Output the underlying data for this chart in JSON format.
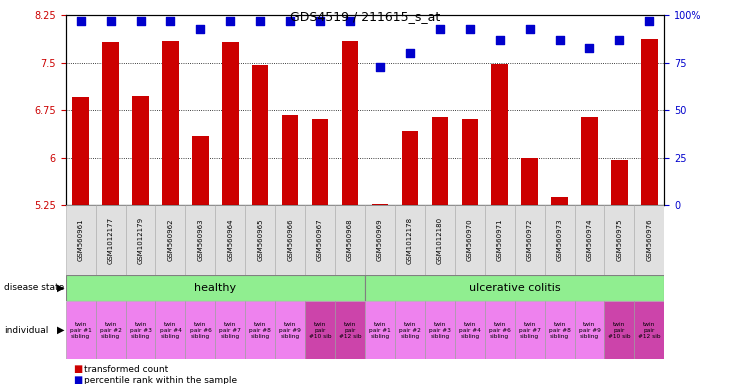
{
  "title": "GDS4519 / 211615_s_at",
  "samples": [
    "GSM560961",
    "GSM1012177",
    "GSM1012179",
    "GSM560962",
    "GSM560963",
    "GSM560964",
    "GSM560965",
    "GSM560966",
    "GSM560967",
    "GSM560968",
    "GSM560969",
    "GSM1012178",
    "GSM1012180",
    "GSM560970",
    "GSM560971",
    "GSM560972",
    "GSM560973",
    "GSM560974",
    "GSM560975",
    "GSM560976"
  ],
  "bar_values": [
    6.96,
    7.83,
    6.97,
    7.85,
    6.35,
    7.83,
    7.47,
    6.67,
    6.62,
    7.85,
    5.27,
    6.42,
    6.65,
    6.61,
    7.49,
    6.0,
    5.38,
    6.65,
    5.97,
    7.87
  ],
  "dot_values": [
    97,
    97,
    97,
    97,
    93,
    97,
    97,
    97,
    97,
    97,
    73,
    80,
    93,
    93,
    87,
    93,
    87,
    83,
    87,
    97
  ],
  "bar_color": "#cc0000",
  "dot_color": "#0000cc",
  "ymin": 5.25,
  "ymax": 8.25,
  "yticks_left": [
    5.25,
    6.0,
    6.75,
    7.5,
    8.25
  ],
  "ytick_labels_left": [
    "5.25",
    "6",
    "6.75",
    "7.5",
    "8.25"
  ],
  "yticks_right": [
    0,
    25,
    50,
    75,
    100
  ],
  "ytick_labels_right": [
    "0",
    "25",
    "50",
    "75",
    "100%"
  ],
  "grid_lines": [
    6.0,
    6.75,
    7.5
  ],
  "disease_state_divider": 10,
  "healthy_label": "healthy",
  "uc_label": "ulcerative colitis",
  "healthy_color": "#90ee90",
  "uc_color": "#90ee90",
  "individual_labels": [
    "twin\npair #1\nsibling",
    "twin\npair #2\nsibling",
    "twin\npair #3\nsibling",
    "twin\npair #4\nsibling",
    "twin\npair #6\nsibling",
    "twin\npair #7\nsibling",
    "twin\npair #8\nsibling",
    "twin\npair #9\nsibling",
    "twin\npair\n#10 sib",
    "twin\npair\n#12 sib",
    "twin\npair #1\nsibling",
    "twin\npair #2\nsibling",
    "twin\npair #3\nsibling",
    "twin\npair #4\nsibling",
    "twin\npair #6\nsibling",
    "twin\npair #7\nsibling",
    "twin\npair #8\nsibling",
    "twin\npair #9\nsibling",
    "twin\npair\n#10 sib",
    "twin\npair\n#12 sib"
  ],
  "ind_color_normal": "#ee82ee",
  "ind_color_highlight": "#cc44aa",
  "highlight_indices": [
    8,
    9,
    18,
    19
  ],
  "bg_color": "#ffffff",
  "bar_width": 0.55
}
